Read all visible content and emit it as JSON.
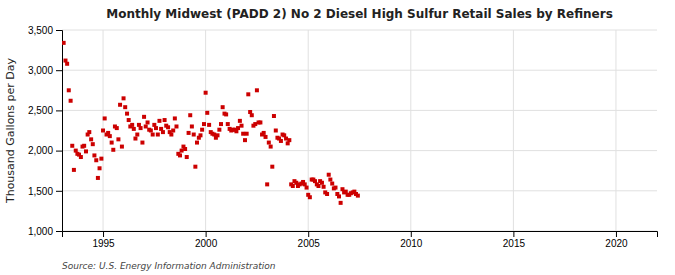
{
  "chart_data": {
    "type": "scatter",
    "title": "Monthly Midwest (PADD 2) No 2 Diesel High Sulfur Retail Sales by Refiners",
    "ylabel": "Thousand Gallons per Day",
    "source": "Source: U.S. Energy Information Administration",
    "color": "#cc0000",
    "marker": "square",
    "grid": true,
    "xlim": [
      1993.0,
      2022.0
    ],
    "xticks": [
      1995,
      2000,
      2005,
      2010,
      2015,
      2020
    ],
    "ylim": [
      1000,
      3500
    ],
    "yticks": [
      {
        "value": 1000,
        "label": "1,000"
      },
      {
        "value": 1500,
        "label": "1,500"
      },
      {
        "value": 2000,
        "label": "2,000"
      },
      {
        "value": 2500,
        "label": "2,500"
      },
      {
        "value": 3000,
        "label": "3,000"
      },
      {
        "value": 3500,
        "label": "3,500"
      }
    ],
    "x": [
      1993.08,
      1993.17,
      1993.25,
      1993.33,
      1993.42,
      1993.5,
      1993.58,
      1993.67,
      1993.75,
      1993.83,
      1993.92,
      1994.0,
      1994.08,
      1994.17,
      1994.25,
      1994.33,
      1994.42,
      1994.5,
      1994.58,
      1994.67,
      1994.75,
      1994.83,
      1994.92,
      1995.0,
      1995.08,
      1995.17,
      1995.25,
      1995.33,
      1995.42,
      1995.5,
      1995.58,
      1995.67,
      1995.75,
      1995.83,
      1995.92,
      1996.0,
      1996.08,
      1996.17,
      1996.25,
      1996.33,
      1996.42,
      1996.5,
      1996.58,
      1996.67,
      1996.75,
      1996.83,
      1996.92,
      1997.0,
      1997.08,
      1997.17,
      1997.25,
      1997.33,
      1997.42,
      1997.5,
      1997.58,
      1997.67,
      1997.75,
      1997.83,
      1997.92,
      1998.0,
      1998.08,
      1998.17,
      1998.25,
      1998.33,
      1998.42,
      1998.5,
      1998.58,
      1998.67,
      1998.75,
      1998.83,
      1998.92,
      1999.0,
      1999.08,
      1999.17,
      1999.25,
      1999.33,
      1999.42,
      1999.5,
      1999.58,
      1999.67,
      1999.75,
      1999.83,
      1999.92,
      2000.0,
      2000.08,
      2000.17,
      2000.25,
      2000.33,
      2000.42,
      2000.5,
      2000.58,
      2000.67,
      2000.75,
      2000.83,
      2000.92,
      2001.0,
      2001.08,
      2001.17,
      2001.25,
      2001.33,
      2001.42,
      2001.5,
      2001.58,
      2001.67,
      2001.75,
      2001.83,
      2001.92,
      2002.0,
      2002.08,
      2002.17,
      2002.25,
      2002.33,
      2002.42,
      2002.5,
      2002.58,
      2002.67,
      2002.75,
      2002.83,
      2002.92,
      2003.0,
      2003.08,
      2003.17,
      2003.25,
      2003.33,
      2003.42,
      2003.5,
      2003.58,
      2003.67,
      2003.75,
      2003.83,
      2003.92,
      2004.0,
      2004.08,
      2004.17,
      2004.25,
      2004.33,
      2004.42,
      2004.5,
      2004.58,
      2004.67,
      2004.75,
      2004.83,
      2004.92,
      2005.0,
      2005.08,
      2005.17,
      2005.25,
      2005.33,
      2005.42,
      2005.5,
      2005.58,
      2005.67,
      2005.75,
      2005.83,
      2005.92,
      2006.0,
      2006.08,
      2006.17,
      2006.25,
      2006.33,
      2006.42,
      2006.5,
      2006.58,
      2006.67,
      2006.75,
      2006.83,
      2006.92,
      2007.0,
      2007.08,
      2007.17,
      2007.25,
      2007.33,
      2007.42
    ],
    "values": [
      3340,
      3120,
      3080,
      2750,
      2620,
      2060,
      1760,
      2000,
      1960,
      1950,
      1920,
      2050,
      2060,
      1990,
      2200,
      2230,
      2140,
      2080,
      1940,
      1880,
      1660,
      1780,
      1900,
      2250,
      2400,
      2200,
      2220,
      2180,
      2100,
      2010,
      2300,
      2280,
      2140,
      2570,
      2050,
      2650,
      2540,
      2460,
      2380,
      2300,
      2320,
      2270,
      2150,
      2200,
      2320,
      2280,
      2100,
      2420,
      2300,
      2350,
      2260,
      2250,
      2200,
      2320,
      2280,
      2200,
      2370,
      2270,
      2230,
      2380,
      2310,
      2290,
      2230,
      2200,
      2250,
      2400,
      2300,
      1960,
      1940,
      2000,
      2050,
      2020,
      1920,
      2220,
      2440,
      2300,
      2200,
      1800,
      2100,
      2160,
      2190,
      2260,
      2330,
      2720,
      2470,
      2320,
      2230,
      2210,
      2200,
      2160,
      2190,
      2260,
      2330,
      2540,
      2460,
      2450,
      2330,
      2270,
      2250,
      2260,
      2260,
      2240,
      2280,
      2370,
      2310,
      2210,
      2130,
      2210,
      2700,
      2480,
      2440,
      2310,
      2330,
      2750,
      2350,
      2350,
      2200,
      2220,
      2170,
      1580,
      2100,
      2050,
      1800,
      2430,
      2250,
      2160,
      2150,
      2120,
      2200,
      2190,
      2150,
      2090,
      2130,
      1580,
      1560,
      1620,
      1600,
      1560,
      1580,
      1590,
      1610,
      1580,
      1540,
      1450,
      1420,
      1640,
      1640,
      1620,
      1580,
      1560,
      1620,
      1600,
      1550,
      1480,
      1460,
      1700,
      1640,
      1590,
      1530,
      1540,
      1460,
      1430,
      1350,
      1520,
      1480,
      1490,
      1450,
      1450,
      1470,
      1480,
      1490,
      1460,
      1440
    ]
  }
}
